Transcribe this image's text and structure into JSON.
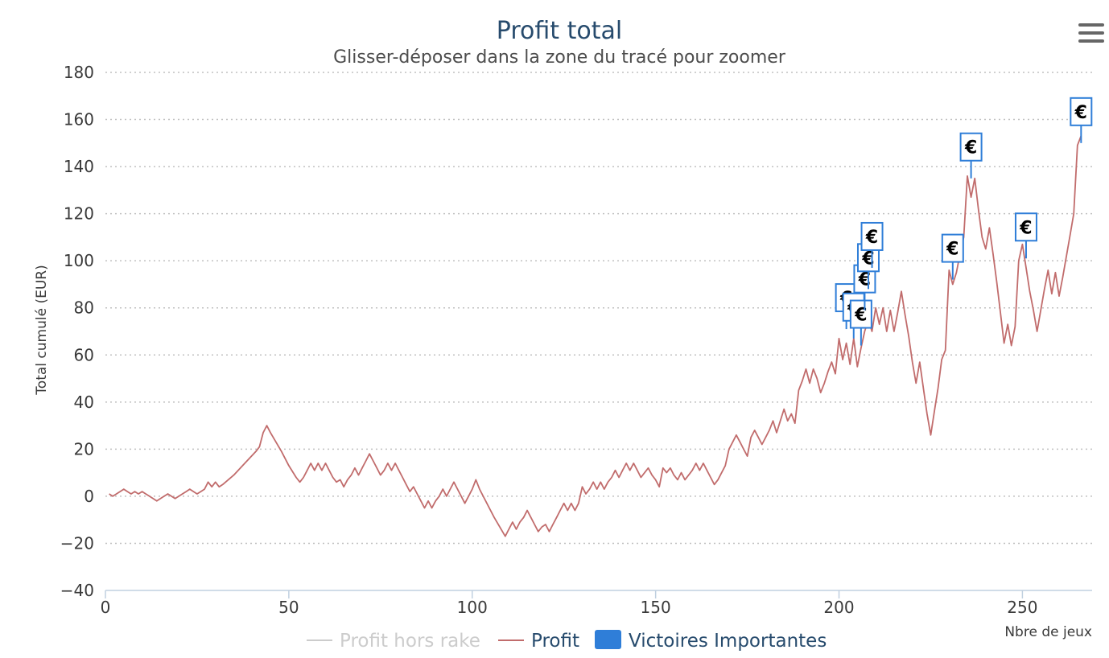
{
  "menu": {
    "icon": "hamburger-menu-icon"
  },
  "chart_data": {
    "type": "line",
    "title": "Profit total",
    "subtitle": "Glisser-déposer dans la zone du tracé pour zoomer",
    "xlabel": "Nbre de jeux",
    "ylabel": "Total cumulé (EUR)",
    "xlim": [
      0,
      269
    ],
    "ylim": [
      -40,
      180
    ],
    "x_ticks": [
      "0",
      "50",
      "100",
      "150",
      "200",
      "250"
    ],
    "y_ticks": [
      "−40",
      "−20",
      "0",
      "20",
      "40",
      "60",
      "80",
      "100",
      "120",
      "140",
      "160",
      "180"
    ],
    "grid": true,
    "legend_position": "bottom",
    "colors": {
      "profit": "#c16c6c",
      "profit_hors_rake": "#cccccc",
      "victoires": "#2f7ed8",
      "title": "#274b6d"
    },
    "series": [
      {
        "name": "Profit hors rake",
        "hidden": true,
        "points": []
      },
      {
        "name": "Profit",
        "points": [
          [
            1,
            1
          ],
          [
            2,
            0
          ],
          [
            3,
            1
          ],
          [
            4,
            2
          ],
          [
            5,
            3
          ],
          [
            6,
            2
          ],
          [
            7,
            1
          ],
          [
            8,
            2
          ],
          [
            9,
            1
          ],
          [
            10,
            2
          ],
          [
            11,
            1
          ],
          [
            12,
            0
          ],
          [
            13,
            -1
          ],
          [
            14,
            -2
          ],
          [
            15,
            -1
          ],
          [
            16,
            0
          ],
          [
            17,
            1
          ],
          [
            18,
            0
          ],
          [
            19,
            -1
          ],
          [
            20,
            0
          ],
          [
            21,
            1
          ],
          [
            22,
            2
          ],
          [
            23,
            3
          ],
          [
            24,
            2
          ],
          [
            25,
            1
          ],
          [
            26,
            2
          ],
          [
            27,
            3
          ],
          [
            28,
            6
          ],
          [
            29,
            4
          ],
          [
            30,
            6
          ],
          [
            31,
            4
          ],
          [
            32,
            5
          ],
          [
            35,
            9
          ],
          [
            38,
            14
          ],
          [
            41,
            19
          ],
          [
            42,
            21
          ],
          [
            43,
            27
          ],
          [
            44,
            30
          ],
          [
            45,
            27
          ],
          [
            48,
            19
          ],
          [
            50,
            13
          ],
          [
            52,
            8
          ],
          [
            53,
            6
          ],
          [
            54,
            8
          ],
          [
            55,
            11
          ],
          [
            56,
            14
          ],
          [
            57,
            11
          ],
          [
            58,
            14
          ],
          [
            59,
            11
          ],
          [
            60,
            14
          ],
          [
            61,
            11
          ],
          [
            62,
            8
          ],
          [
            63,
            6
          ],
          [
            64,
            7
          ],
          [
            65,
            4
          ],
          [
            66,
            7
          ],
          [
            67,
            9
          ],
          [
            68,
            12
          ],
          [
            69,
            9
          ],
          [
            70,
            12
          ],
          [
            71,
            15
          ],
          [
            72,
            18
          ],
          [
            73,
            15
          ],
          [
            74,
            12
          ],
          [
            75,
            9
          ],
          [
            76,
            11
          ],
          [
            77,
            14
          ],
          [
            78,
            11
          ],
          [
            79,
            14
          ],
          [
            80,
            11
          ],
          [
            81,
            8
          ],
          [
            82,
            5
          ],
          [
            83,
            2
          ],
          [
            84,
            4
          ],
          [
            85,
            1
          ],
          [
            86,
            -2
          ],
          [
            87,
            -5
          ],
          [
            88,
            -2
          ],
          [
            89,
            -5
          ],
          [
            90,
            -2
          ],
          [
            91,
            0
          ],
          [
            92,
            3
          ],
          [
            93,
            0
          ],
          [
            94,
            3
          ],
          [
            95,
            6
          ],
          [
            96,
            3
          ],
          [
            97,
            0
          ],
          [
            98,
            -3
          ],
          [
            99,
            0
          ],
          [
            100,
            3
          ],
          [
            101,
            7
          ],
          [
            102,
            3
          ],
          [
            103,
            0
          ],
          [
            106,
            -9
          ],
          [
            109,
            -17
          ],
          [
            110,
            -14
          ],
          [
            111,
            -11
          ],
          [
            112,
            -14
          ],
          [
            113,
            -11
          ],
          [
            114,
            -9
          ],
          [
            115,
            -6
          ],
          [
            116,
            -9
          ],
          [
            117,
            -12
          ],
          [
            118,
            -15
          ],
          [
            119,
            -13
          ],
          [
            120,
            -12
          ],
          [
            121,
            -15
          ],
          [
            122,
            -12
          ],
          [
            123,
            -9
          ],
          [
            124,
            -6
          ],
          [
            125,
            -3
          ],
          [
            126,
            -6
          ],
          [
            127,
            -3
          ],
          [
            128,
            -6
          ],
          [
            129,
            -3
          ],
          [
            130,
            4
          ],
          [
            131,
            1
          ],
          [
            132,
            3
          ],
          [
            133,
            6
          ],
          [
            134,
            3
          ],
          [
            135,
            6
          ],
          [
            136,
            3
          ],
          [
            137,
            6
          ],
          [
            138,
            8
          ],
          [
            139,
            11
          ],
          [
            140,
            8
          ],
          [
            141,
            11
          ],
          [
            142,
            14
          ],
          [
            143,
            11
          ],
          [
            144,
            14
          ],
          [
            145,
            11
          ],
          [
            146,
            8
          ],
          [
            147,
            10
          ],
          [
            148,
            12
          ],
          [
            149,
            9
          ],
          [
            150,
            7
          ],
          [
            151,
            4
          ],
          [
            152,
            12
          ],
          [
            153,
            10
          ],
          [
            154,
            12
          ],
          [
            155,
            9
          ],
          [
            156,
            7
          ],
          [
            157,
            10
          ],
          [
            158,
            7
          ],
          [
            159,
            9
          ],
          [
            160,
            11
          ],
          [
            161,
            14
          ],
          [
            162,
            11
          ],
          [
            163,
            14
          ],
          [
            164,
            11
          ],
          [
            165,
            8
          ],
          [
            166,
            5
          ],
          [
            167,
            7
          ],
          [
            168,
            10
          ],
          [
            169,
            13
          ],
          [
            170,
            20
          ],
          [
            171,
            23
          ],
          [
            172,
            26
          ],
          [
            173,
            23
          ],
          [
            174,
            20
          ],
          [
            175,
            17
          ],
          [
            176,
            25
          ],
          [
            177,
            28
          ],
          [
            178,
            25
          ],
          [
            179,
            22
          ],
          [
            180,
            25
          ],
          [
            181,
            28
          ],
          [
            182,
            32
          ],
          [
            183,
            27
          ],
          [
            184,
            32
          ],
          [
            185,
            37
          ],
          [
            186,
            32
          ],
          [
            187,
            35
          ],
          [
            188,
            31
          ],
          [
            189,
            45
          ],
          [
            190,
            49
          ],
          [
            191,
            54
          ],
          [
            192,
            48
          ],
          [
            193,
            54
          ],
          [
            194,
            50
          ],
          [
            195,
            44
          ],
          [
            196,
            48
          ],
          [
            197,
            53
          ],
          [
            198,
            57
          ],
          [
            199,
            52
          ],
          [
            200,
            67
          ],
          [
            201,
            58
          ],
          [
            202,
            65
          ],
          [
            203,
            56
          ],
          [
            204,
            67
          ],
          [
            205,
            55
          ],
          [
            206,
            63
          ],
          [
            207,
            70
          ],
          [
            208,
            75
          ],
          [
            209,
            70
          ],
          [
            210,
            80
          ],
          [
            211,
            73
          ],
          [
            212,
            80
          ],
          [
            213,
            70
          ],
          [
            214,
            79
          ],
          [
            215,
            70
          ],
          [
            216,
            78
          ],
          [
            217,
            87
          ],
          [
            218,
            77
          ],
          [
            219,
            68
          ],
          [
            220,
            57
          ],
          [
            221,
            48
          ],
          [
            222,
            57
          ],
          [
            223,
            46
          ],
          [
            224,
            35
          ],
          [
            225,
            26
          ],
          [
            226,
            36
          ],
          [
            227,
            46
          ],
          [
            228,
            58
          ],
          [
            229,
            62
          ],
          [
            230,
            96
          ],
          [
            231,
            90
          ],
          [
            232,
            95
          ],
          [
            233,
            103
          ],
          [
            234,
            110
          ],
          [
            235,
            136
          ],
          [
            236,
            127
          ],
          [
            237,
            135
          ],
          [
            238,
            122
          ],
          [
            239,
            110
          ],
          [
            240,
            105
          ],
          [
            241,
            114
          ],
          [
            242,
            103
          ],
          [
            243,
            91
          ],
          [
            244,
            78
          ],
          [
            245,
            65
          ],
          [
            246,
            73
          ],
          [
            247,
            64
          ],
          [
            248,
            72
          ],
          [
            249,
            100
          ],
          [
            250,
            107
          ],
          [
            251,
            97
          ],
          [
            252,
            87
          ],
          [
            253,
            79
          ],
          [
            254,
            70
          ],
          [
            255,
            79
          ],
          [
            256,
            88
          ],
          [
            257,
            96
          ],
          [
            258,
            86
          ],
          [
            259,
            95
          ],
          [
            260,
            85
          ],
          [
            261,
            93
          ],
          [
            262,
            102
          ],
          [
            263,
            111
          ],
          [
            264,
            120
          ],
          [
            265,
            149
          ],
          [
            266,
            153
          ]
        ]
      },
      {
        "name": "Victoires Importantes",
        "flags": [
          {
            "x": 202,
            "y": 71,
            "label": "€"
          },
          {
            "x": 204,
            "y": 67,
            "label": "€"
          },
          {
            "x": 206,
            "y": 64,
            "label": "€"
          },
          {
            "x": 207,
            "y": 79,
            "label": "€"
          },
          {
            "x": 208,
            "y": 88,
            "label": "€"
          },
          {
            "x": 209,
            "y": 97,
            "label": "€"
          },
          {
            "x": 231,
            "y": 92,
            "label": "€"
          },
          {
            "x": 236,
            "y": 135,
            "label": "€"
          },
          {
            "x": 251,
            "y": 101,
            "label": "€"
          },
          {
            "x": 266,
            "y": 150,
            "label": "€"
          }
        ]
      }
    ]
  }
}
